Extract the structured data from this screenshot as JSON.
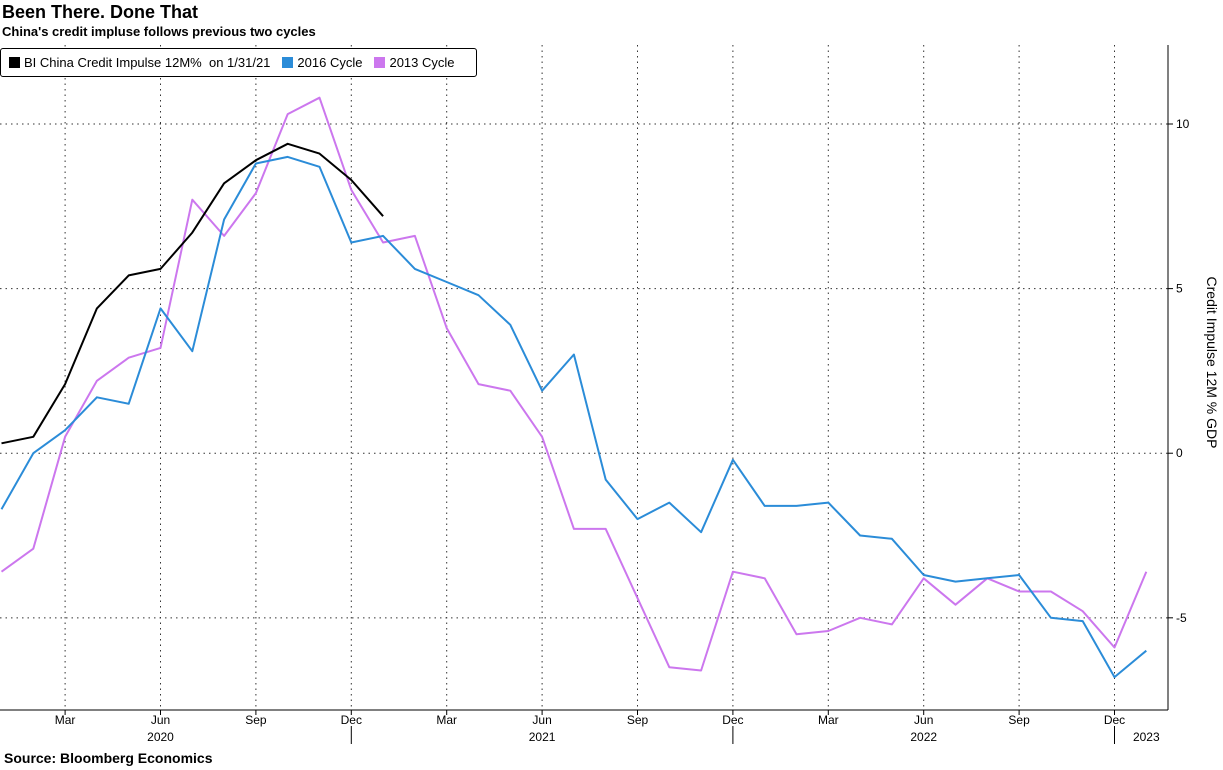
{
  "header": {
    "title": "Been There. Done That",
    "subtitle": "China's credit impluse follows previous two cycles"
  },
  "footer": {
    "source": "Source: Bloomberg Economics"
  },
  "chart_data": {
    "type": "line",
    "title": "Been There. Done That",
    "subtitle": "China's credit impluse follows previous two cycles",
    "ylabel": "Credit Impulse 12M % GDP",
    "ylim": [
      -7.8,
      12.4
    ],
    "yticks": [
      10,
      5,
      0,
      -5
    ],
    "ytick_labels": [
      "10",
      "5",
      "0",
      "-5"
    ],
    "y_axis_side": "right",
    "grid": true,
    "legend_position": "top-left",
    "x_months": [
      "Jan 2020",
      "Feb 2020",
      "Mar 2020",
      "Apr 2020",
      "May 2020",
      "Jun 2020",
      "Jul 2020",
      "Aug 2020",
      "Sep 2020",
      "Oct 2020",
      "Nov 2020",
      "Dec 2020",
      "Jan 2021",
      "Feb 2021",
      "Mar 2021",
      "Apr 2021",
      "May 2021",
      "Jun 2021",
      "Jul 2021",
      "Aug 2021",
      "Sep 2021",
      "Oct 2021",
      "Nov 2021",
      "Dec 2021",
      "Jan 2022",
      "Feb 2022",
      "Mar 2022",
      "Apr 2022",
      "May 2022",
      "Jun 2022",
      "Jul 2022",
      "Aug 2022",
      "Sep 2022",
      "Oct 2022",
      "Nov 2022",
      "Dec 2022",
      "Jan 2023"
    ],
    "x_month_ticks": [
      "Mar",
      "Jun",
      "Sep",
      "Dec",
      "Mar",
      "Jun",
      "Sep",
      "Dec",
      "Mar",
      "Jun",
      "Sep",
      "Dec"
    ],
    "x_month_tick_index": [
      2,
      5,
      8,
      11,
      14,
      17,
      20,
      23,
      26,
      29,
      32,
      35
    ],
    "x_year_labels": [
      "2020",
      "2021",
      "2022",
      "2023"
    ],
    "x_year_label_index": [
      5,
      17,
      29,
      36
    ],
    "x_year_separator_index": [
      11,
      23,
      35
    ],
    "series": [
      {
        "name": "BI China Credit Impulse 12M%  on 1/31/21",
        "color": "#000000",
        "values": [
          0.3,
          0.5,
          2.1,
          4.4,
          5.4,
          5.6,
          6.7,
          8.2,
          8.9,
          9.4,
          9.1,
          8.3,
          7.2
        ]
      },
      {
        "name": "2016 Cycle",
        "color": "#2b8cd8",
        "values": [
          -1.7,
          0.0,
          0.7,
          1.7,
          1.5,
          4.4,
          3.1,
          7.1,
          8.8,
          9.0,
          8.7,
          6.4,
          6.6,
          5.6,
          5.2,
          4.8,
          3.9,
          1.9,
          3.0,
          -0.8,
          -2.0,
          -1.5,
          -2.4,
          -0.2,
          -1.6,
          -1.6,
          -1.5,
          -2.5,
          -2.6,
          -3.7,
          -3.9,
          -3.8,
          -3.7,
          -5.0,
          -5.1,
          -6.8,
          -6.0
        ]
      },
      {
        "name": "2013 Cycle",
        "color": "#cc77ee",
        "values": [
          -3.6,
          -2.9,
          0.5,
          2.2,
          2.9,
          3.2,
          7.7,
          6.6,
          7.9,
          10.3,
          10.8,
          8.0,
          6.4,
          6.6,
          3.8,
          2.1,
          1.9,
          0.5,
          -2.3,
          -2.3,
          -4.4,
          -6.5,
          -6.6,
          -3.6,
          -3.8,
          -5.5,
          -5.4,
          -5.0,
          -5.2,
          -3.8,
          -4.6,
          -3.8,
          -4.2,
          -4.2,
          -4.8,
          -5.9,
          -3.6
        ]
      }
    ]
  }
}
